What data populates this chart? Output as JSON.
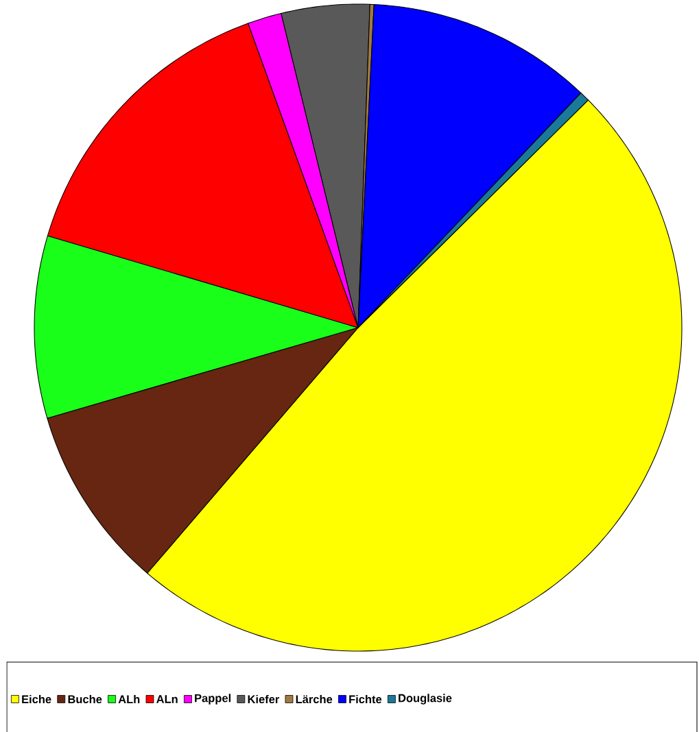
{
  "chart_data": {
    "type": "pie",
    "categories": [
      "Eiche",
      "Buche",
      "ALh",
      "ALn",
      "Pappel",
      "Kiefer",
      "Lärche",
      "Fichte",
      "Douglasie"
    ],
    "values": [
      48.7,
      9.2,
      9.1,
      14.9,
      1.7,
      4.4,
      0.2,
      11.3,
      0.5
    ],
    "colors": [
      "#ffff00",
      "#662611",
      "#1aff1a",
      "#ff0000",
      "#ff00ff",
      "#595959",
      "#a07a40",
      "#0000ff",
      "#1a7a99"
    ],
    "legend": "bottom"
  }
}
